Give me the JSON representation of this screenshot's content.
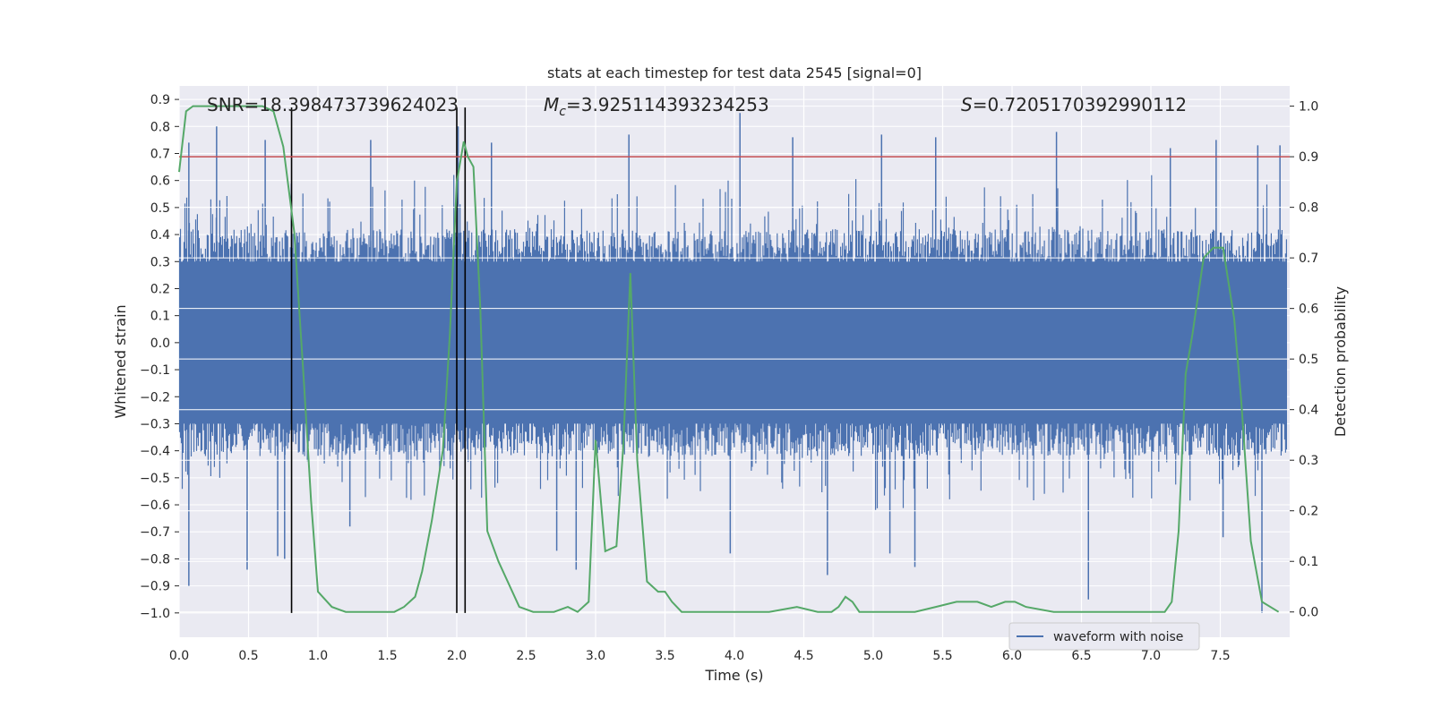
{
  "chart_data": {
    "type": "line",
    "title": "stats at each timestep for test data 2545 [signal=0]",
    "xlabel": "Time (s)",
    "ylabel_left": "Whitened strain",
    "ylabel_right": "Detection probability",
    "xlim": [
      0.0,
      8.0
    ],
    "ylim_left": [
      -1.09,
      0.95
    ],
    "ylim_right": [
      -0.05,
      1.04
    ],
    "x_ticks": [
      "0.0",
      "0.5",
      "1.0",
      "1.5",
      "2.0",
      "2.5",
      "3.0",
      "3.5",
      "4.0",
      "4.5",
      "5.0",
      "5.5",
      "6.0",
      "6.5",
      "7.0",
      "7.5"
    ],
    "y_left_ticks": [
      "0.9",
      "0.8",
      "0.7",
      "0.6",
      "0.5",
      "0.4",
      "0.3",
      "0.2",
      "0.1",
      "0.0",
      "-0.1",
      "-0.2",
      "-0.3",
      "-0.4",
      "-0.5",
      "-0.6",
      "-0.7",
      "-0.8",
      "-0.9",
      "-1.0"
    ],
    "y_right_ticks": [
      "0.0",
      "0.1",
      "0.2",
      "0.3",
      "0.4",
      "0.5",
      "0.6",
      "0.7",
      "0.8",
      "0.9",
      "1.0"
    ],
    "grid": true,
    "legend_position": "lower-right",
    "annotations": {
      "snr": "SNR=18.398473739624023",
      "mc_symbol": "M",
      "mc_sub": "c",
      "mc_value": "=3.925114393234253",
      "s_symbol": "S",
      "s_value": "=0.7205170392990112"
    },
    "threshold": {
      "value": 0.9,
      "axis": "right",
      "color": "#c44e52"
    },
    "vertical_markers": {
      "x": [
        0.81,
        2.0,
        2.06
      ],
      "y_from": -1.0,
      "y_to": 0.87,
      "color": "#000000"
    },
    "series": [
      {
        "name": "waveform with noise",
        "axis": "left",
        "color": "#4c72b0",
        "envelope_note": "dense noise waveform, approx. symmetric around 0, typical amplitude ±0.3 to ±0.5",
        "spikes_up": [
          [
            0.07,
            0.74
          ],
          [
            0.27,
            0.8
          ],
          [
            0.62,
            0.75
          ],
          [
            1.38,
            0.75
          ],
          [
            2.01,
            0.8
          ],
          [
            2.25,
            0.74
          ],
          [
            3.24,
            0.77
          ],
          [
            4.04,
            0.85
          ],
          [
            4.42,
            0.76
          ],
          [
            5.06,
            0.77
          ],
          [
            5.45,
            0.76
          ],
          [
            6.32,
            0.78
          ],
          [
            7.14,
            0.72
          ],
          [
            7.47,
            0.75
          ],
          [
            7.77,
            0.73
          ],
          [
            7.93,
            0.73
          ]
        ],
        "spikes_down": [
          [
            0.07,
            -0.9
          ],
          [
            0.49,
            -0.84
          ],
          [
            0.71,
            -0.79
          ],
          [
            0.76,
            -0.8
          ],
          [
            1.23,
            -0.68
          ],
          [
            2.72,
            -0.77
          ],
          [
            2.86,
            -0.84
          ],
          [
            3.97,
            -0.78
          ],
          [
            4.67,
            -0.86
          ],
          [
            5.12,
            -0.78
          ],
          [
            5.3,
            -0.83
          ],
          [
            6.55,
            -0.95
          ],
          [
            7.52,
            -0.72
          ],
          [
            7.8,
            -1.0
          ]
        ]
      },
      {
        "name": "detection probability",
        "axis": "right",
        "color": "#55a868",
        "x": [
          0.0,
          0.05,
          0.1,
          0.2,
          0.4,
          0.6,
          0.68,
          0.75,
          0.83,
          0.9,
          0.95,
          1.0,
          1.1,
          1.2,
          1.4,
          1.55,
          1.62,
          1.7,
          1.75,
          1.82,
          1.9,
          1.95,
          2.0,
          2.05,
          2.08,
          2.12,
          2.17,
          2.22,
          2.3,
          2.45,
          2.55,
          2.7,
          2.8,
          2.87,
          2.95,
          3.0,
          3.07,
          3.15,
          3.2,
          3.25,
          3.3,
          3.37,
          3.45,
          3.5,
          3.55,
          3.62,
          3.75,
          4.0,
          4.25,
          4.45,
          4.6,
          4.7,
          4.75,
          4.8,
          4.85,
          4.9,
          5.05,
          5.2,
          5.3,
          5.45,
          5.6,
          5.75,
          5.85,
          5.95,
          6.02,
          6.1,
          6.3,
          6.6,
          6.9,
          7.1,
          7.15,
          7.2,
          7.25,
          7.3,
          7.38,
          7.45,
          7.52,
          7.6,
          7.65,
          7.72,
          7.8,
          7.92
        ],
        "y": [
          0.87,
          0.99,
          1.0,
          1.0,
          1.0,
          1.0,
          0.99,
          0.92,
          0.75,
          0.45,
          0.22,
          0.04,
          0.01,
          0.0,
          0.0,
          0.0,
          0.01,
          0.03,
          0.08,
          0.18,
          0.32,
          0.55,
          0.85,
          0.93,
          0.9,
          0.88,
          0.6,
          0.16,
          0.1,
          0.01,
          0.0,
          0.0,
          0.01,
          0.0,
          0.02,
          0.34,
          0.12,
          0.13,
          0.33,
          0.67,
          0.3,
          0.06,
          0.04,
          0.04,
          0.02,
          0.0,
          0.0,
          0.0,
          0.0,
          0.01,
          0.0,
          0.0,
          0.01,
          0.03,
          0.02,
          0.0,
          0.0,
          0.0,
          0.0,
          0.01,
          0.02,
          0.02,
          0.01,
          0.02,
          0.02,
          0.01,
          0.0,
          0.0,
          0.0,
          0.0,
          0.02,
          0.16,
          0.47,
          0.55,
          0.7,
          0.72,
          0.72,
          0.58,
          0.42,
          0.14,
          0.02,
          0.0
        ]
      }
    ]
  }
}
